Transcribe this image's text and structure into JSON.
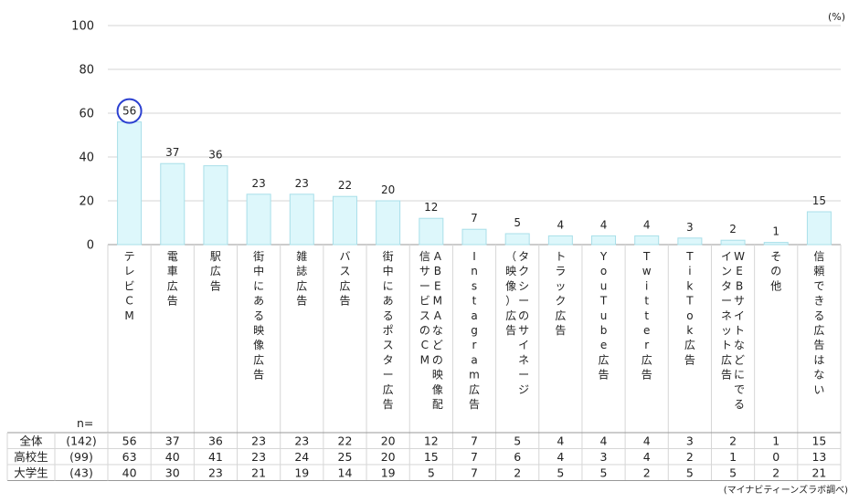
{
  "chart_data": {
    "type": "bar",
    "unit_label": "(%)",
    "ylim": [
      0,
      100
    ],
    "yticks": [
      0,
      20,
      40,
      60,
      80,
      100
    ],
    "grid": true,
    "categories": [
      "テレビCM",
      "電車広告",
      "駅広告",
      "街中にある映像広告",
      "雑誌広告",
      "バス広告",
      "街中にあるポスター広告",
      "ABEMAなどの映像配信サービスのCM",
      "Instagram広告",
      "タクシーのサイネージ（映像）広告",
      "トラック広告",
      "YouTube広告",
      "Twitter広告",
      "TikTok広告",
      "WEBサイトなどにでるインターネット広告",
      "その他",
      "信頼できる広告はない"
    ],
    "category_columns": [
      [
        "テレビCM"
      ],
      [
        "電車広告"
      ],
      [
        "駅広告"
      ],
      [
        "街中にある映像広告"
      ],
      [
        "雑誌広告"
      ],
      [
        "バス広告"
      ],
      [
        "街中にあるポスター広告"
      ],
      [
        "信サービスのCM",
        "ABEMAなどの映像配"
      ],
      [
        "Instagram広告"
      ],
      [
        "（映像）広告",
        "タクシーのサイネージ"
      ],
      [
        "トラック広告"
      ],
      [
        "YouTube広告"
      ],
      [
        "Twitter広告"
      ],
      [
        "TikTok広告"
      ],
      [
        "インターネット広告",
        "WEBサイトなどにでる"
      ],
      [
        "その他"
      ],
      [
        "信頼できる広告はない"
      ]
    ],
    "values": [
      56,
      37,
      36,
      23,
      23,
      22,
      20,
      12,
      7,
      5,
      4,
      4,
      4,
      3,
      2,
      1,
      15
    ],
    "highlight_index": 0,
    "colors": {
      "bar_fill": "#ddf7fb",
      "bar_stroke": "#a9dfe9",
      "highlight_circle": "#2a3fd0",
      "grid": "#d6d6d6",
      "axis": "#999999"
    },
    "table": {
      "n_label": "n=",
      "rows": [
        {
          "label": "全体",
          "n": "(142)",
          "values": [
            56,
            37,
            36,
            23,
            23,
            22,
            20,
            12,
            7,
            5,
            4,
            4,
            4,
            3,
            2,
            1,
            15
          ]
        },
        {
          "label": "高校生",
          "n": "(99)",
          "values": [
            63,
            40,
            41,
            23,
            24,
            25,
            20,
            15,
            7,
            6,
            4,
            3,
            4,
            2,
            1,
            0,
            13
          ]
        },
        {
          "label": "大学生",
          "n": "(43)",
          "values": [
            40,
            30,
            23,
            21,
            19,
            14,
            19,
            5,
            7,
            2,
            5,
            5,
            2,
            5,
            5,
            2,
            21
          ]
        }
      ]
    },
    "source": "(マイナビティーンズラボ調べ)"
  }
}
